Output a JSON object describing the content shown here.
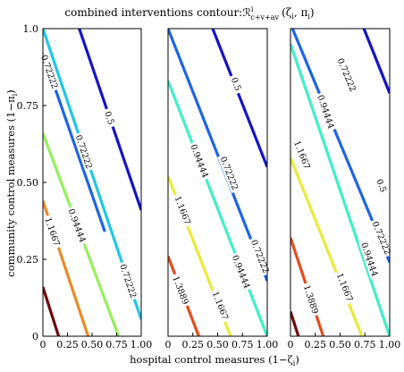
{
  "chart_data": [
    {
      "type": "contour",
      "title": "combined interventions contour:ℛ",
      "title_superscript": "i",
      "title_subscript": "c+v+av",
      "title_args": "(ζ",
      "title_args_sub1": "i",
      "title_args_mid": ", π",
      "title_args_sub2": "i",
      "title_args_end": ")",
      "xlabel_main": "hospital control measures (1−ζ",
      "xlabel_sub": "i",
      "xlabel_end": ")",
      "ylabel_main": "community control measures (1−π",
      "ylabel_sub": "i",
      "ylabel_end": ")",
      "xlim": [
        0,
        1
      ],
      "ylim": [
        0,
        1
      ],
      "grid": false,
      "panels": [
        {
          "x_ticks": [
            "0",
            "0.25",
            "0.50",
            "0.75",
            "1.00"
          ],
          "y_ticks": [
            "0",
            "0.25",
            "0.50",
            "0.75",
            "1.0"
          ],
          "contours": [
            {
              "level": "0.5",
              "color": "#1414c8",
              "points": [
                [
                  0.37,
                  1.0
                ],
                [
                  1.0,
                  0.41
                ]
              ],
              "label_at": [
                0.68,
                0.71
              ]
            },
            {
              "level": "0.72222",
              "color": "#1e64e6",
              "points": [
                [
                  0.0,
                  0.92
                ],
                [
                  0.63,
                  0.34
                ]
              ],
              "label_at": [
                0.07,
                0.86
              ]
            },
            {
              "level": "0.72222",
              "color": "#1ec8e6",
              "points": [
                [
                  0.0,
                  1.0
                ],
                [
                  1.0,
                  0.055
                ]
              ],
              "label_at": [
                0.42,
                0.6
              ],
              "label_at2": [
                0.87,
                0.18
              ]
            },
            {
              "level": "0.94444",
              "color": "#96f05a",
              "points": [
                [
                  0.0,
                  0.66
                ],
                [
                  0.77,
                  0.0
                ]
              ],
              "label_at": [
                0.35,
                0.36
              ]
            },
            {
              "level": "1.1667",
              "color": "#ee8a28",
              "points": [
                [
                  0.0,
                  0.44
                ],
                [
                  0.46,
                  0.0
                ]
              ],
              "label_at": [
                0.1,
                0.34
              ]
            },
            {
              "level": "",
              "color": "#6e0a0a",
              "points": [
                [
                  0.0,
                  0.16
                ],
                [
                  0.16,
                  0.0
                ]
              ],
              "label_at": null
            }
          ]
        },
        {
          "x_ticks": [
            "0",
            "0.25",
            "0.50",
            "0.75",
            "1.00"
          ],
          "y_ticks": [],
          "contours": [
            {
              "level": "0.5",
              "color": "#1414c8",
              "points": [
                [
                  0.45,
                  1.0
                ],
                [
                  1.0,
                  0.55
                ]
              ],
              "label_at": [
                0.69,
                0.82
              ]
            },
            {
              "level": "0.72222",
              "color": "#1e64e6",
              "points": [
                [
                  0.0,
                  1.0
                ],
                [
                  1.0,
                  0.18
                ]
              ],
              "label_at": [
                0.62,
                0.53
              ],
              "label_at2": [
                0.93,
                0.26
              ]
            },
            {
              "level": "0.94444",
              "color": "#3ef0c8",
              "points": [
                [
                  0.0,
                  0.83
                ],
                [
                  1.0,
                  0.0
                ]
              ],
              "label_at": [
                0.32,
                0.57
              ],
              "label_at2": [
                0.74,
                0.21
              ]
            },
            {
              "level": "1.1667",
              "color": "#eaea3a",
              "points": [
                [
                  0.0,
                  0.52
                ],
                [
                  0.63,
                  0.0
                ]
              ],
              "label_at": [
                0.15,
                0.41
              ],
              "label_at2": [
                0.53,
                0.1
              ]
            },
            {
              "level": "1.3889",
              "color": "#e64a1e",
              "points": [
                [
                  0.0,
                  0.26
                ],
                [
                  0.31,
                  0.0
                ]
              ],
              "label_at": [
                0.13,
                0.15
              ]
            }
          ]
        },
        {
          "x_ticks": [
            "0",
            "0.25",
            "0.50",
            "0.75",
            "1.00"
          ],
          "y_ticks": [],
          "contours": [
            {
              "level": "0.5",
              "color": "#1414c8",
              "points": [
                [
                  0.74,
                  1.0
                ],
                [
                  1.0,
                  0.79
                ]
              ],
              "label_at": [
                0.92,
                0.49
              ]
            },
            {
              "level": "0.72222",
              "color": "#1e64e6",
              "points": [
                [
                  0.02,
                  1.0
                ],
                [
                  1.0,
                  0.24
                ]
              ],
              "label_at": [
                0.57,
                0.85
              ],
              "label_at2": [
                0.92,
                0.32
              ]
            },
            {
              "level": "0.94444",
              "color": "#3ef0c8",
              "points": [
                [
                  0.0,
                  0.95
                ],
                [
                  1.0,
                  0.0
                ]
              ],
              "label_at": [
                0.36,
                0.73
              ],
              "label_at2": [
                0.8,
                0.25
              ]
            },
            {
              "level": "1.1667",
              "color": "#eaea3a",
              "points": [
                [
                  0.0,
                  0.58
                ],
                [
                  0.72,
                  0.0
                ]
              ],
              "label_at": [
                0.12,
                0.59
              ],
              "label_at2": [
                0.55,
                0.16
              ]
            },
            {
              "level": "1.3889",
              "color": "#e64a1e",
              "points": [
                [
                  0.0,
                  0.32
                ],
                [
                  0.33,
                  0.0
                ]
              ],
              "label_at": [
                0.21,
                0.12
              ]
            },
            {
              "level": "",
              "color": "#6e0a0a",
              "points": [
                [
                  0.0,
                  0.08
                ],
                [
                  0.08,
                  0.0
                ]
              ],
              "label_at": null
            }
          ]
        }
      ]
    }
  ]
}
